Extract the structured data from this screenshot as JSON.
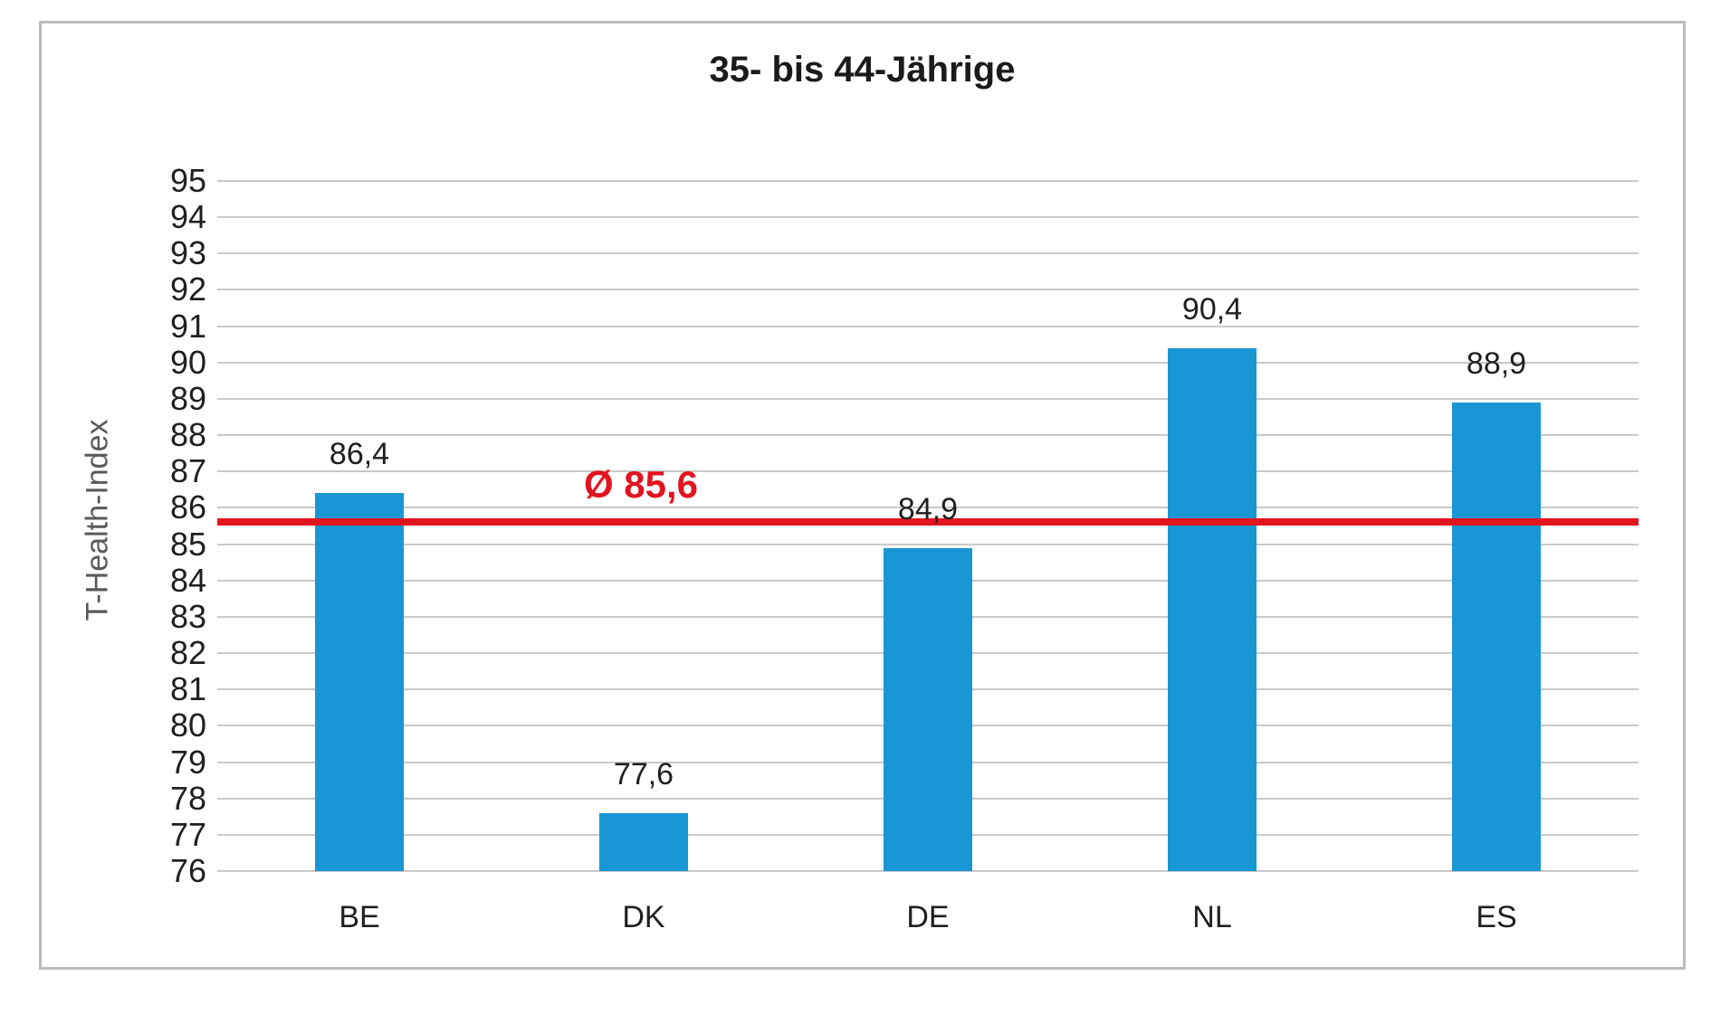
{
  "chart_data": {
    "type": "bar",
    "title": "35- bis 44-Jährige",
    "ylabel": "T-Health-Index",
    "xlabel": "",
    "categories": [
      "BE",
      "DK",
      "DE",
      "NL",
      "ES"
    ],
    "values": [
      86.4,
      77.6,
      84.9,
      90.4,
      88.9
    ],
    "value_labels": [
      "86,4",
      "77,6",
      "84,9",
      "90,4",
      "88,9"
    ],
    "average_line": {
      "value": 85.6,
      "label": "Ø 85,6",
      "color": "#e2141f"
    },
    "ylim": [
      76,
      95
    ],
    "ytick_step": 1,
    "grid": true,
    "legend": "none",
    "bar_color": "#1997d4",
    "gridline_color": "#c9c9c9",
    "frame_border_color": "#b9bcbc",
    "axis_title_color": "#595959",
    "text_color": "#1f1f1f"
  }
}
